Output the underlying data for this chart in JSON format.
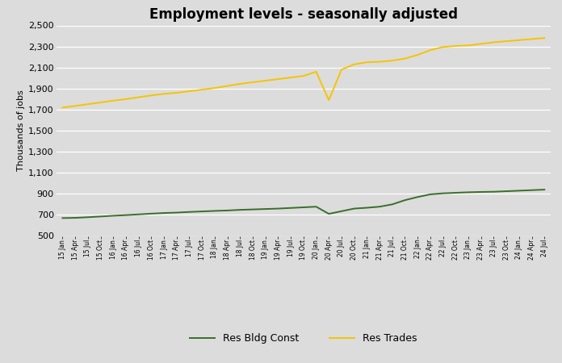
{
  "title": "Employment levels - seasonally adjusted",
  "ylabel": "Thousands of jobs",
  "ylim": [
    500,
    2500
  ],
  "yticks": [
    500,
    700,
    900,
    1100,
    1300,
    1500,
    1700,
    1900,
    2100,
    2300,
    2500
  ],
  "background_color": "#dcdcdc",
  "plot_bg_color": "#dcdcdc",
  "green_color": "#3a6e2a",
  "gold_color": "#f5c400",
  "line_width": 1.4,
  "legend_labels": [
    "Res Bldg Const",
    "Res Trades"
  ],
  "tick_labels": [
    "15 Jan",
    "15 Apr",
    "15 Jul",
    "15 Oct",
    "16 Jan",
    "16 Apr",
    "16 Jul",
    "16 Oct",
    "17 Jan",
    "17 Apr",
    "17 Jul",
    "17 Oct",
    "18 Jan",
    "18 Apr",
    "18 Jul",
    "18 Oct",
    "19 Jan",
    "19 Apr",
    "19 Jul",
    "19 Oct",
    "20 Jan",
    "20 Apr",
    "20 Jul",
    "20 Oct",
    "21 Jan",
    "21 Apr",
    "21 Jul",
    "21 Oct",
    "22 Jan",
    "22 Apr",
    "22 Jul",
    "22 Oct",
    "23 Jan",
    "23 Apr",
    "23 Jul",
    "23 Oct",
    "24 Jan",
    "24 Apr",
    "24 Jul"
  ],
  "res_bldg_const": [
    670,
    672,
    678,
    685,
    692,
    698,
    705,
    712,
    718,
    722,
    728,
    733,
    738,
    742,
    748,
    752,
    756,
    760,
    766,
    772,
    778,
    710,
    735,
    760,
    768,
    778,
    800,
    840,
    870,
    895,
    905,
    910,
    915,
    918,
    920,
    925,
    930,
    935,
    940
  ],
  "res_trades": [
    1720,
    1735,
    1752,
    1768,
    1785,
    1800,
    1818,
    1835,
    1850,
    1860,
    1875,
    1890,
    1905,
    1925,
    1945,
    1960,
    1975,
    1990,
    2005,
    2020,
    2060,
    1790,
    2080,
    2130,
    2150,
    2155,
    2165,
    2185,
    2220,
    2265,
    2295,
    2305,
    2310,
    2325,
    2340,
    2350,
    2360,
    2370,
    2380
  ]
}
